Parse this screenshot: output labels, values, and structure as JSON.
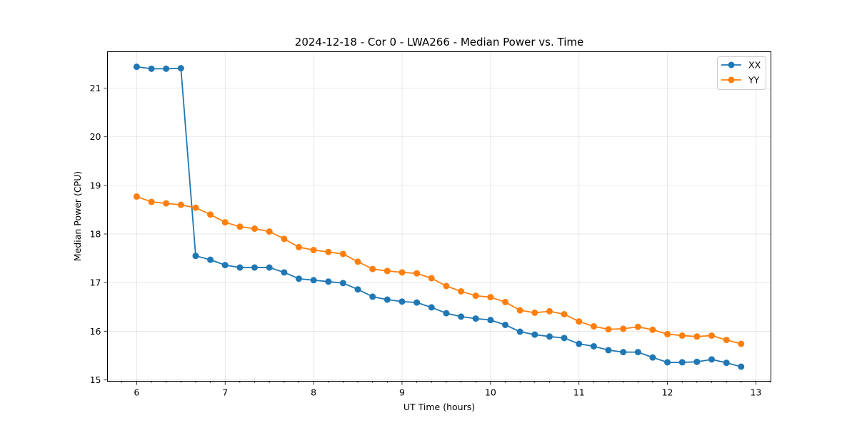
{
  "chart_data": {
    "type": "line",
    "title": "2024-12-18 - Cor 0 - LWA266 - Median Power vs. Time",
    "xlabel": "UT Time (hours)",
    "ylabel": "Median Power (CPU)",
    "xlim": [
      5.67,
      13.17
    ],
    "ylim": [
      14.97,
      21.75
    ],
    "xticks": [
      6,
      7,
      8,
      9,
      10,
      11,
      12,
      13
    ],
    "xtick_labels": [
      "6",
      "7",
      "8",
      "9",
      "10",
      "11",
      "12",
      "13"
    ],
    "yticks": [
      15,
      16,
      17,
      18,
      19,
      20,
      21
    ],
    "ytick_labels": [
      "15",
      "16",
      "17",
      "18",
      "19",
      "20",
      "21"
    ],
    "grid": true,
    "legend_position": "top-right",
    "x": [
      6.0,
      6.167,
      6.333,
      6.5,
      6.667,
      6.833,
      7.0,
      7.167,
      7.333,
      7.5,
      7.667,
      7.833,
      8.0,
      8.167,
      8.333,
      8.5,
      8.667,
      8.833,
      9.0,
      9.167,
      9.333,
      9.5,
      9.667,
      9.833,
      10.0,
      10.167,
      10.333,
      10.5,
      10.667,
      10.833,
      11.0,
      11.167,
      11.333,
      11.5,
      11.667,
      11.833,
      12.0,
      12.167,
      12.333,
      12.5,
      12.667,
      12.833
    ],
    "series": [
      {
        "name": "XX",
        "color": "#1f77b4",
        "values": [
          21.44,
          21.4,
          21.4,
          21.41,
          17.55,
          17.47,
          17.36,
          17.31,
          17.31,
          17.31,
          17.21,
          17.08,
          17.05,
          17.02,
          16.99,
          16.86,
          16.71,
          16.65,
          16.61,
          16.59,
          16.49,
          16.37,
          16.3,
          16.26,
          16.23,
          16.13,
          15.99,
          15.93,
          15.89,
          15.86,
          15.74,
          15.69,
          15.61,
          15.57,
          15.57,
          15.46,
          15.36,
          15.36,
          15.37,
          15.42,
          15.35,
          15.27
        ]
      },
      {
        "name": "YY",
        "color": "#ff7f0e",
        "values": [
          18.77,
          18.66,
          18.63,
          18.6,
          18.54,
          18.4,
          18.24,
          18.15,
          18.11,
          18.05,
          17.9,
          17.73,
          17.67,
          17.63,
          17.59,
          17.43,
          17.28,
          17.24,
          17.21,
          17.19,
          17.09,
          16.93,
          16.82,
          16.73,
          16.7,
          16.6,
          16.43,
          16.38,
          16.41,
          16.35,
          16.2,
          16.1,
          16.04,
          16.05,
          16.09,
          16.03,
          15.94,
          15.91,
          15.89,
          15.91,
          15.82,
          15.74
        ]
      }
    ]
  }
}
